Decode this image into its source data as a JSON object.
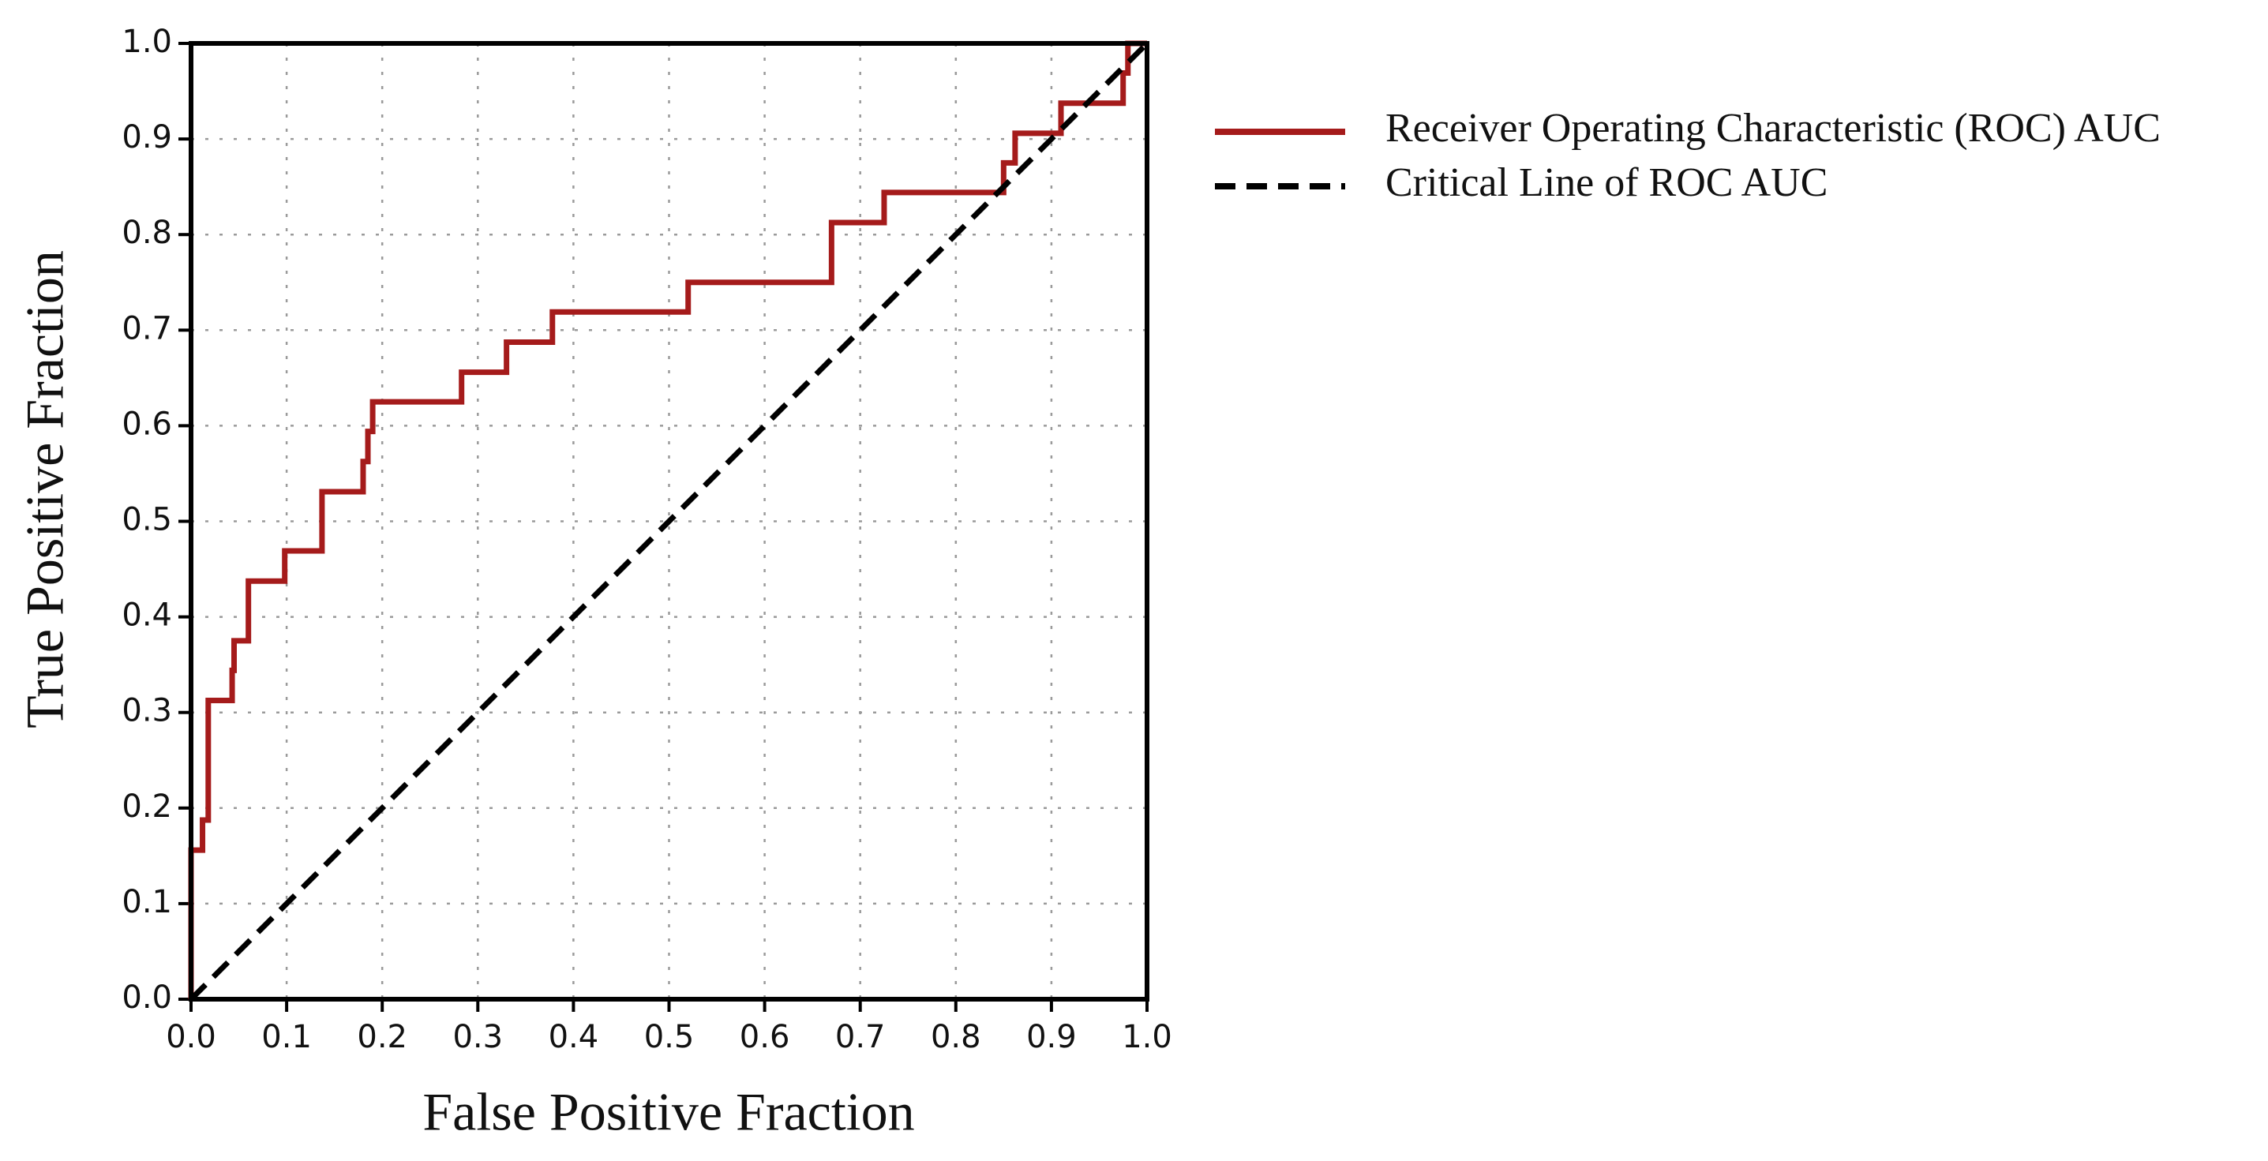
{
  "chart_data": {
    "type": "line",
    "xlabel": "False Positive Fraction",
    "ylabel": "True Positive Fraction",
    "xlim": [
      0,
      1
    ],
    "ylim": [
      0,
      1
    ],
    "xticks": [
      {
        "value": 0,
        "label": "0.0"
      },
      0.1,
      0.2,
      0.3,
      0.4,
      0.5,
      0.6,
      0.7,
      0.8,
      0.9,
      {
        "value": 1,
        "label": "1.0"
      }
    ],
    "yticks": [
      {
        "value": 0,
        "label": "0.0"
      },
      0.1,
      0.2,
      0.3,
      0.4,
      0.5,
      0.6,
      0.7,
      0.8,
      0.9,
      {
        "value": 1,
        "label": "1.0"
      }
    ],
    "grid": true,
    "legend": "right",
    "series": [
      {
        "name": "Receiver Operating Characteristic (ROC) AUC",
        "color": "#a51b1b",
        "line_style": "solid",
        "x": [
          0,
          0,
          0.012,
          0.012,
          0.018,
          0.018,
          0.043,
          0.043,
          0.045,
          0.045,
          0.06,
          0.06,
          0.098,
          0.098,
          0.137,
          0.137,
          0.18,
          0.18,
          0.185,
          0.185,
          0.19,
          0.19,
          0.283,
          0.283,
          0.33,
          0.33,
          0.378,
          0.378,
          0.52,
          0.52,
          0.67,
          0.67,
          0.725,
          0.725,
          0.85,
          0.85,
          0.862,
          0.862,
          0.91,
          0.91,
          0.975,
          0.975,
          0.98,
          0.98,
          1.0
        ],
        "values": [
          0,
          0.156,
          0.156,
          0.1875,
          0.1875,
          0.3125,
          0.3125,
          0.344,
          0.344,
          0.375,
          0.375,
          0.4375,
          0.4375,
          0.469,
          0.469,
          0.531,
          0.531,
          0.5625,
          0.5625,
          0.594,
          0.594,
          0.625,
          0.625,
          0.656,
          0.656,
          0.6875,
          0.6875,
          0.719,
          0.719,
          0.75,
          0.75,
          0.8125,
          0.8125,
          0.844,
          0.844,
          0.875,
          0.875,
          0.906,
          0.906,
          0.9375,
          0.9375,
          0.969,
          0.969,
          1.0,
          1.0
        ]
      },
      {
        "name": "Critical Line of  ROC AUC",
        "color": "#000000",
        "line_style": "dashed",
        "x": [
          0,
          1
        ],
        "values": [
          0,
          1
        ]
      }
    ]
  }
}
